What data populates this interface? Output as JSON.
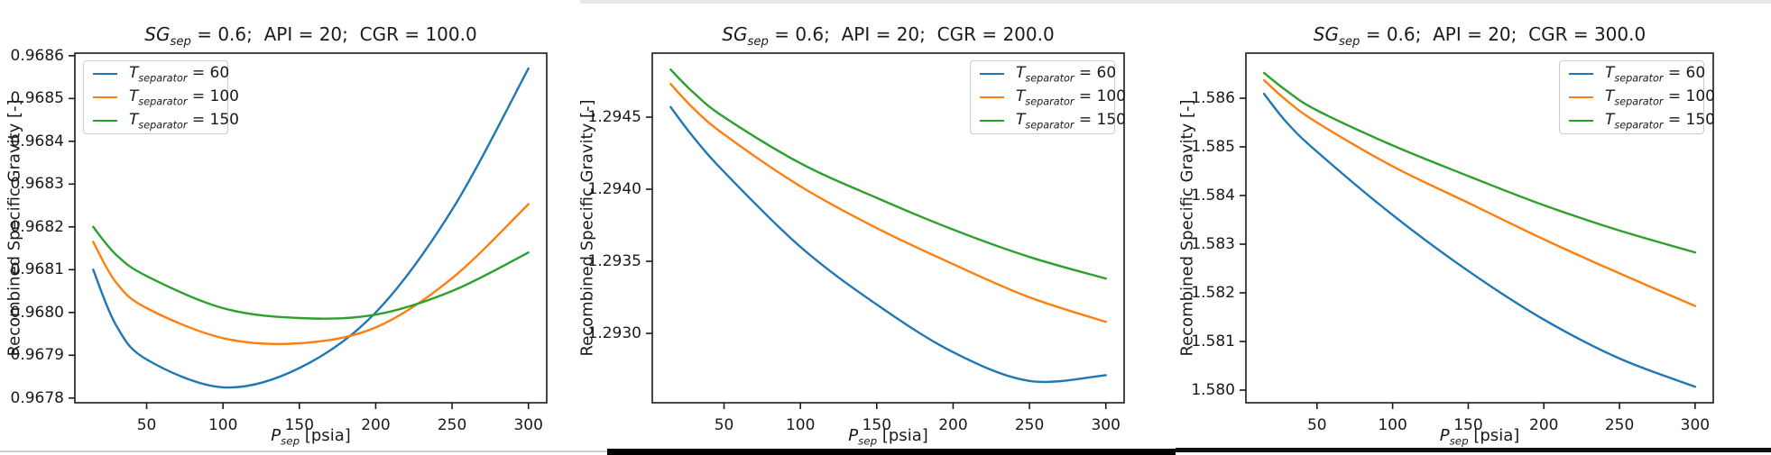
{
  "figure": {
    "background": "#ffffff",
    "spine_color": "#1a1a1a",
    "text_color": "#1a1a1a",
    "top_strip_color": "#e7e7e7",
    "bottom_left_strip_color": "#cdcdcd",
    "bottom_middle_bar_color": "#000000",
    "bottom_right_bar_color": "#101010"
  },
  "ylabel": "Recombined Specific Gravity [-]",
  "xlabel": {
    "var": "P",
    "sub": "sep",
    "rest": " [psia]"
  },
  "chart_data": [
    {
      "type": "line",
      "title": {
        "var": "SG",
        "sub": "sep",
        "rest": " = 0.6;  API = 20;  CGR = 100.0"
      },
      "xlabel": "P_sep [psia]",
      "ylabel": "Recombined Specific Gravity [-]",
      "x": [
        15,
        30,
        50,
        100,
        150,
        200,
        250,
        300
      ],
      "series": [
        {
          "name": "T_separator = 60",
          "legend": {
            "var": "T",
            "sub": "separator",
            "rest": " = 60"
          },
          "color": "#1f77b4",
          "values": [
            0.9681,
            0.96797,
            0.96789,
            0.967825,
            0.96787,
            0.968,
            0.96824,
            0.96857
          ]
        },
        {
          "name": "T_separator = 100",
          "legend": {
            "var": "T",
            "sub": "separator",
            "rest": " = 100"
          },
          "color": "#ff7f0e",
          "values": [
            0.968165,
            0.96807,
            0.96801,
            0.96794,
            0.967928,
            0.967965,
            0.96808,
            0.968253
          ]
        },
        {
          "name": "T_separator = 150",
          "legend": {
            "var": "T",
            "sub": "separator",
            "rest": " = 150"
          },
          "color": "#2ca02c",
          "values": [
            0.9682,
            0.968135,
            0.968085,
            0.96801,
            0.967987,
            0.967995,
            0.96805,
            0.96814
          ]
        }
      ],
      "xticks": [
        "50",
        "100",
        "150",
        "200",
        "250",
        "300"
      ],
      "yticks": [
        "0.9678",
        "0.9679",
        "0.9680",
        "0.9681",
        "0.9682",
        "0.9683",
        "0.9684",
        "0.9685",
        "0.9686"
      ],
      "xlim": [
        3,
        312
      ],
      "ylim": [
        0.967789,
        0.968606
      ],
      "grid": false,
      "legend_position": "upper-left"
    },
    {
      "type": "line",
      "title": {
        "var": "SG",
        "sub": "sep",
        "rest": " = 0.6;  API = 20;  CGR = 200.0"
      },
      "xlabel": "P_sep [psia]",
      "ylabel": "Recombined Specific Gravity [-]",
      "x": [
        15,
        30,
        50,
        100,
        150,
        200,
        250,
        300
      ],
      "series": [
        {
          "name": "T_separator = 60",
          "legend": {
            "var": "T",
            "sub": "separator",
            "rest": " = 60"
          },
          "color": "#1f77b4",
          "values": [
            1.29457,
            1.29436,
            1.29412,
            1.2936,
            1.2932,
            1.29287,
            1.29267,
            1.29271
          ]
        },
        {
          "name": "T_separator = 100",
          "legend": {
            "var": "T",
            "sub": "separator",
            "rest": " = 100"
          },
          "color": "#ff7f0e",
          "values": [
            1.29473,
            1.29456,
            1.29438,
            1.29402,
            1.29373,
            1.29348,
            1.29325,
            1.29308
          ]
        },
        {
          "name": "T_separator = 150",
          "legend": {
            "var": "T",
            "sub": "separator",
            "rest": " = 150"
          },
          "color": "#2ca02c",
          "values": [
            1.29483,
            1.29467,
            1.2945,
            1.29418,
            1.29394,
            1.29372,
            1.29353,
            1.29338
          ]
        }
      ],
      "xticks": [
        "50",
        "100",
        "150",
        "200",
        "250",
        "300"
      ],
      "yticks": [
        "1.2930",
        "1.2935",
        "1.2940",
        "1.2945"
      ],
      "xlim": [
        3,
        312
      ],
      "ylim": [
        1.292519,
        1.294944
      ],
      "grid": false,
      "legend_position": "upper-right"
    },
    {
      "type": "line",
      "title": {
        "var": "SG",
        "sub": "sep",
        "rest": " = 0.6;  API = 20;  CGR = 300.0"
      },
      "xlabel": "P_sep [psia]",
      "ylabel": "Recombined Specific Gravity [-]",
      "x": [
        15,
        30,
        50,
        100,
        150,
        200,
        250,
        300
      ],
      "series": [
        {
          "name": "T_separator = 60",
          "legend": {
            "var": "T",
            "sub": "separator",
            "rest": " = 60"
          },
          "color": "#1f77b4",
          "values": [
            1.58609,
            1.5855,
            1.5849,
            1.5836,
            1.58245,
            1.58145,
            1.58065,
            1.58007
          ]
        },
        {
          "name": "T_separator = 100",
          "legend": {
            "var": "T",
            "sub": "separator",
            "rest": " = 100"
          },
          "color": "#ff7f0e",
          "values": [
            1.58637,
            1.58595,
            1.5855,
            1.5846,
            1.58385,
            1.5831,
            1.5824,
            1.58173
          ]
        },
        {
          "name": "T_separator = 150",
          "legend": {
            "var": "T",
            "sub": "separator",
            "rest": " = 150"
          },
          "color": "#2ca02c",
          "values": [
            1.58652,
            1.58615,
            1.58575,
            1.58503,
            1.5844,
            1.5838,
            1.58328,
            1.58283
          ]
        }
      ],
      "xticks": [
        "50",
        "100",
        "150",
        "200",
        "250",
        "300"
      ],
      "yticks": [
        "1.580",
        "1.581",
        "1.582",
        "1.583",
        "1.584",
        "1.585",
        "1.586"
      ],
      "xlim": [
        3,
        312
      ],
      "ylim": [
        1.579741,
        1.586926
      ],
      "grid": false,
      "legend_position": "upper-right"
    }
  ]
}
